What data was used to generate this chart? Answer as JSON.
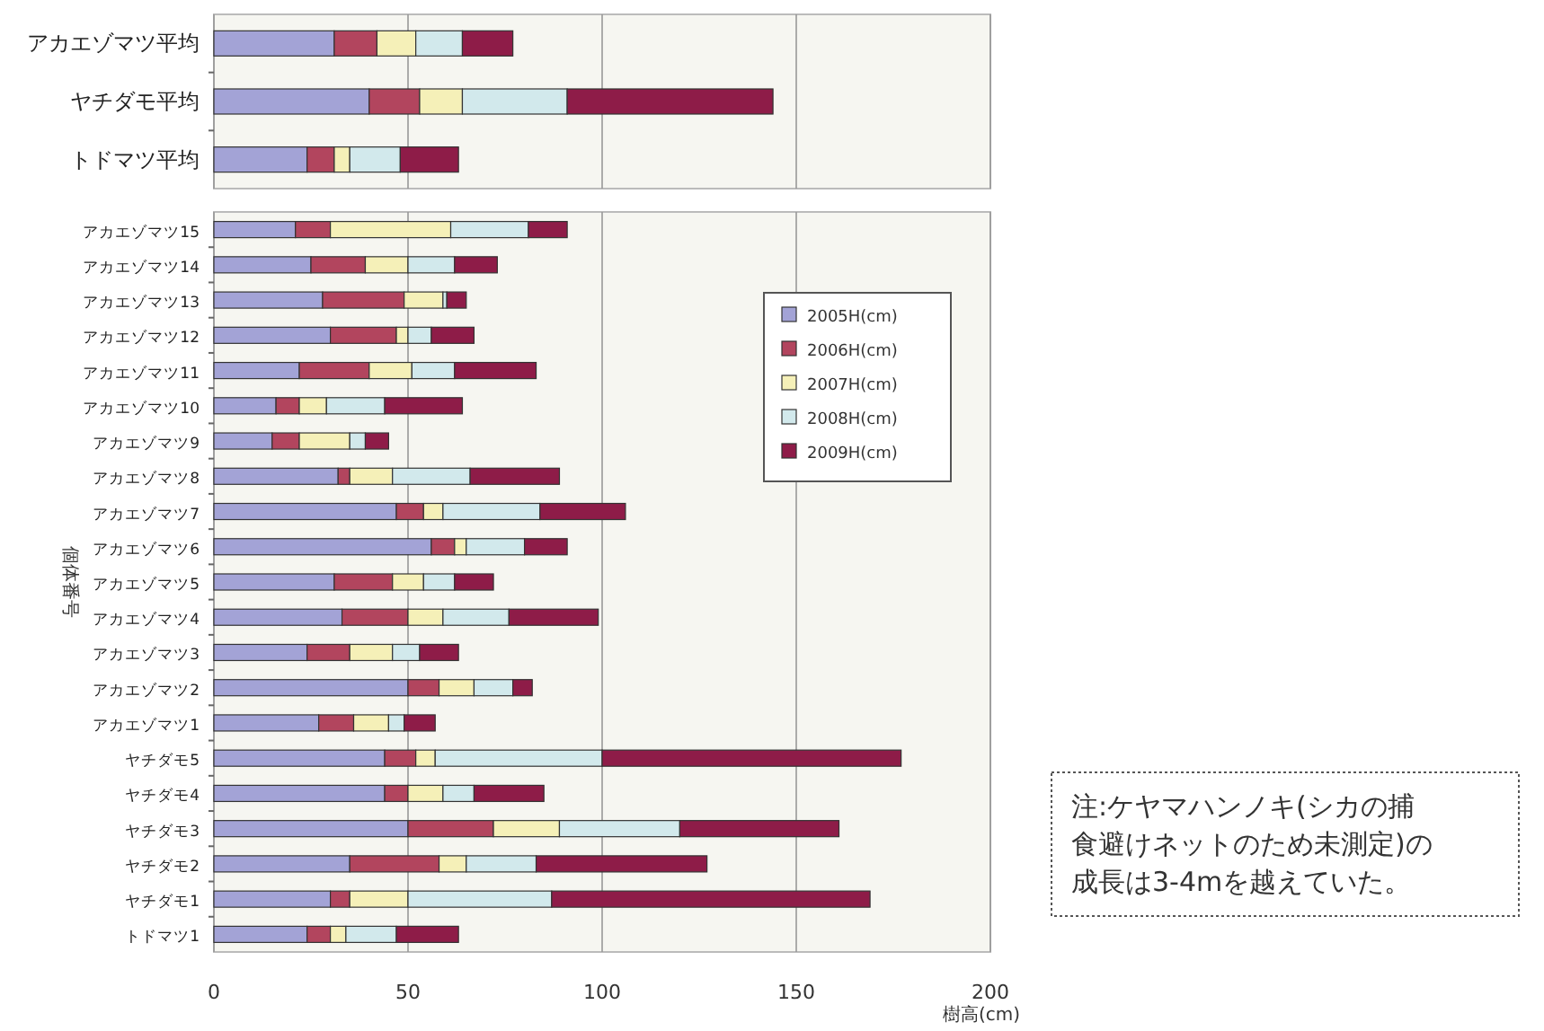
{
  "chart_data": [
    {
      "type": "bar",
      "orientation": "horizontal",
      "stacked": true,
      "categories": [
        "アカエゾマツ平均",
        "ヤチダモ平均",
        "トドマツ平均"
      ],
      "series": [
        {
          "color": "#a3a3d6",
          "values": [
            31,
            40,
            24
          ]
        },
        {
          "color": "#b2455e",
          "values": [
            11,
            13,
            7
          ]
        },
        {
          "color": "#f5f0b8",
          "values": [
            10,
            11,
            4
          ]
        },
        {
          "color": "#d2e9ec",
          "values": [
            12,
            27,
            13
          ]
        },
        {
          "color": "#8e1c48",
          "values": [
            13,
            53,
            15
          ]
        }
      ],
      "xlim": [
        0,
        200
      ],
      "xticks": [
        0,
        50,
        100,
        150,
        200
      ],
      "grid": "x",
      "tick_labels": "y",
      "legend": false
    },
    {
      "type": "bar",
      "orientation": "horizontal",
      "stacked": true,
      "xlabel": "樹高(cm)",
      "ylabel": "個体番号",
      "categories": [
        "アカエゾマツ15",
        "アカエゾマツ14",
        "アカエゾマツ13",
        "アカエゾマツ12",
        "アカエゾマツ11",
        "アカエゾマツ10",
        "アカエゾマツ9",
        "アカエゾマツ8",
        "アカエゾマツ7",
        "アカエゾマツ6",
        "アカエゾマツ5",
        "アカエゾマツ4",
        "アカエゾマツ3",
        "アカエゾマツ2",
        "アカエゾマツ1",
        "ヤチダモ5",
        "ヤチダモ4",
        "ヤチダモ3",
        "ヤチダモ2",
        "ヤチダモ1",
        "トドマツ1"
      ],
      "series": [
        {
          "name": "2005H(cm)",
          "color": "#a3a3d6",
          "values": [
            21,
            25,
            28,
            30,
            22,
            16,
            15,
            32,
            47,
            56,
            31,
            33,
            24,
            50,
            27,
            44,
            44,
            50,
            35,
            30,
            24
          ]
        },
        {
          "name": "2006H(cm)",
          "color": "#b2455e",
          "values": [
            9,
            14,
            21,
            17,
            18,
            6,
            7,
            3,
            7,
            6,
            15,
            17,
            11,
            8,
            9,
            8,
            6,
            22,
            23,
            5,
            6
          ]
        },
        {
          "name": "2007H(cm)",
          "color": "#f5f0b8",
          "values": [
            31,
            11,
            10,
            3,
            11,
            7,
            13,
            11,
            5,
            3,
            8,
            9,
            11,
            9,
            9,
            5,
            9,
            17,
            7,
            15,
            4
          ]
        },
        {
          "name": "2008H(cm)",
          "color": "#d2e9ec",
          "values": [
            20,
            12,
            1,
            6,
            11,
            15,
            4,
            20,
            25,
            15,
            8,
            17,
            7,
            10,
            4,
            43,
            8,
            31,
            18,
            37,
            13
          ]
        },
        {
          "name": "2009H(cm)",
          "color": "#8e1c48",
          "values": [
            10,
            11,
            5,
            11,
            21,
            20,
            6,
            23,
            22,
            11,
            10,
            23,
            10,
            5,
            8,
            77,
            18,
            41,
            44,
            82,
            16
          ]
        }
      ],
      "xlim": [
        0,
        200
      ],
      "xticks": [
        0,
        50,
        100,
        150,
        200
      ],
      "grid": "x",
      "legend": "top right",
      "annotations": [
        "注:ケヤマハンノキ(シカの捕食避けネットのため未測定)の成長は3-4mを越えていた。"
      ]
    }
  ]
}
